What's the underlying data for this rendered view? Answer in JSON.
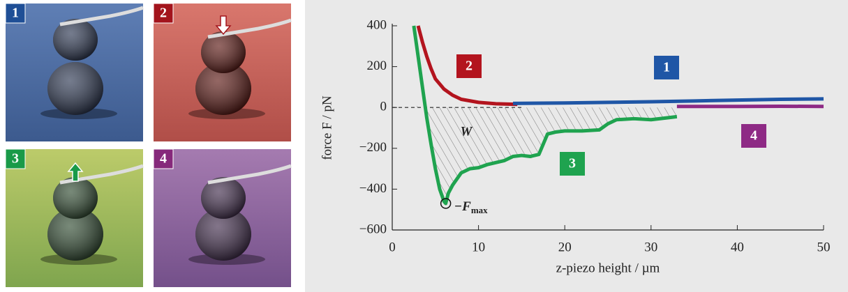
{
  "panels": [
    {
      "label": "1",
      "color": "#1f4f96"
    },
    {
      "label": "2",
      "color": "#a3141c"
    },
    {
      "label": "3",
      "color": "#199a48"
    },
    {
      "label": "4",
      "color": "#86297b"
    }
  ],
  "chart_data": {
    "type": "line",
    "y_label": "force F / pN",
    "x_label": "z-piezo height / µm",
    "xlim": [
      0,
      50
    ],
    "ylim": [
      -600,
      400
    ],
    "xticks": [
      0,
      10,
      20,
      30,
      40,
      50
    ],
    "yticks": [
      {
        "value": -600,
        "label": "−600"
      },
      {
        "value": -400,
        "label": "−400"
      },
      {
        "value": -200,
        "label": "−200"
      },
      0,
      200,
      400
    ],
    "series": [
      {
        "name": "1",
        "color": "#1f56a6",
        "x": [
          14,
          20,
          25,
          30,
          35,
          40,
          45,
          50
        ],
        "values": [
          20,
          22,
          25,
          28,
          32,
          36,
          40,
          42
        ]
      },
      {
        "name": "2",
        "color": "#b3141e",
        "x": [
          3.0,
          3.5,
          4,
          4.5,
          5,
          6,
          7,
          8,
          10,
          12,
          14.5
        ],
        "values": [
          400,
          320,
          250,
          190,
          140,
          90,
          60,
          40,
          25,
          18,
          15
        ]
      },
      {
        "name": "3",
        "color": "#1fa34f",
        "x": [
          2.5,
          3,
          3.5,
          4,
          4.5,
          5,
          5.5,
          6,
          6.2,
          6.5,
          7,
          8,
          9,
          10,
          11,
          12,
          13,
          14,
          15,
          16,
          17,
          17.5,
          18,
          19,
          20,
          22,
          24,
          25,
          26,
          28,
          30,
          32,
          33
        ],
        "values": [
          400,
          250,
          100,
          -50,
          -180,
          -300,
          -400,
          -460,
          -470,
          -420,
          -380,
          -320,
          -300,
          -295,
          -280,
          -270,
          -260,
          -240,
          -235,
          -240,
          -230,
          -180,
          -130,
          -120,
          -115,
          -115,
          -110,
          -80,
          -60,
          -55,
          -60,
          -50,
          -45
        ]
      },
      {
        "name": "4",
        "color": "#8e2a85",
        "x": [
          33,
          40,
          45,
          50
        ],
        "values": [
          5,
          5,
          6,
          5
        ]
      }
    ],
    "work_label": "W",
    "fmax_label": {
      "text": "−F",
      "sub": "max"
    }
  }
}
